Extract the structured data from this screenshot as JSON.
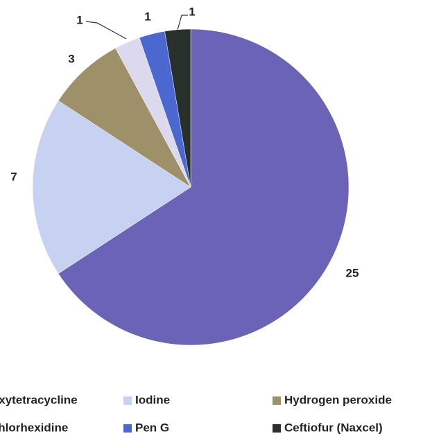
{
  "chart_data": {
    "type": "pie",
    "categories": [
      "Oxytetracycline",
      "Iodine",
      "Hydrogen peroxide",
      "Chlorhexidine",
      "Pen G",
      "Ceftiofur (Naxcel)"
    ],
    "values": [
      25,
      7,
      3,
      1,
      1,
      1
    ],
    "colors": [
      "#6b63b5",
      "#c7d1f1",
      "#9e9068",
      "#dcd8ee",
      "#4a68cf",
      "#27302b"
    ],
    "legend": "bottom"
  }
}
